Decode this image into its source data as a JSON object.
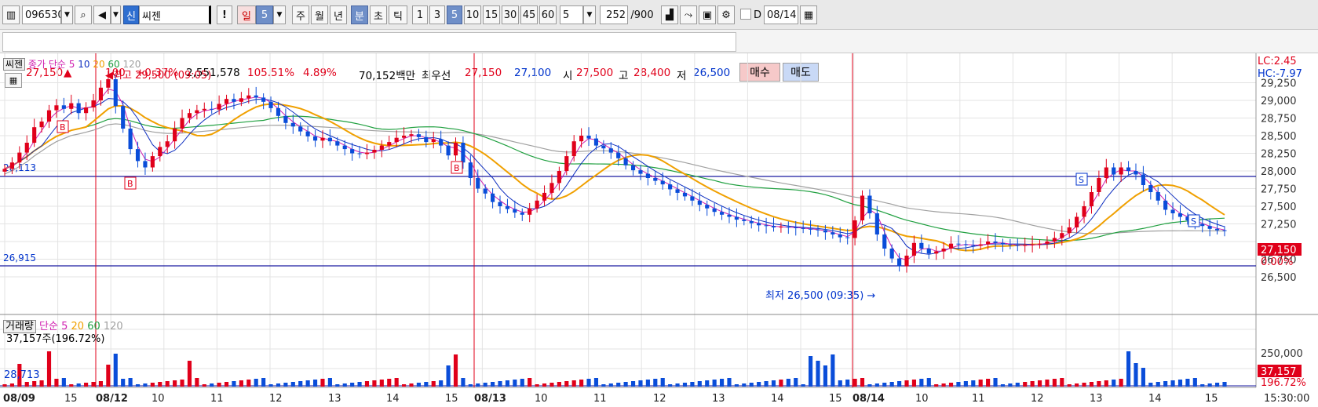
{
  "toolbar": {
    "code": "096530",
    "badge": "신",
    "stock_name": "씨젠",
    "alert": "!",
    "period_day": "일",
    "period_day_num": "5",
    "week": "주",
    "month": "월",
    "year": "년",
    "minute": "분",
    "second": "초",
    "tick": "틱",
    "intervals": [
      "1",
      "3",
      "5",
      "10",
      "15",
      "30",
      "45",
      "60"
    ],
    "interval_value": "5",
    "count": "252",
    "count_max": "/900",
    "date_label": "D",
    "date": "08/14"
  },
  "info": {
    "price": "27,150",
    "arrow": "▲",
    "change": "100",
    "change_pct": "+0.37%",
    "volume": "2,551,578",
    "vol_ratio": "105.51%",
    "turnover": "4.89%",
    "amount": "70,152백만",
    "best_label": "최우선",
    "best_ask": "27,150",
    "best_bid": "27,100",
    "open_label": "시",
    "open": "27,500",
    "high_label": "고",
    "high": "28,400",
    "low_label": "저",
    "low": "26,500",
    "buy": "매수",
    "sell": "매도"
  },
  "price_panel": {
    "name": "씨젠",
    "legend_label": "종가 단순",
    "ma": [
      "5",
      "10",
      "20",
      "60",
      "120"
    ],
    "high_note": "최고 29,500 (09:05)",
    "low_note": "최저 26,500 (09:35)",
    "lc": "LC:2.45",
    "hc": "HC:-7.97",
    "line1_label": "28,113",
    "line2_label": "26,915",
    "ticks": [
      "29,250",
      "29,000",
      "28,750",
      "28,500",
      "28,250",
      "28,000",
      "27,750",
      "27,500",
      "27,250",
      "26,750",
      "26,500"
    ],
    "cur_price": "27,150",
    "cur_pct": "0.00%",
    "markers": [
      "B",
      "B",
      "B",
      "S",
      "S"
    ]
  },
  "volume_panel": {
    "title": "거래량",
    "legend_label": "단순",
    "ma": [
      "5",
      "20",
      "60",
      "120"
    ],
    "info": "37,157주(196.72%)",
    "left_val": "28,713",
    "tick": "250,000",
    "cur_vol": "37,157",
    "cur_pct": "196.72%"
  },
  "xaxis": {
    "labels": [
      "08/09",
      "15",
      "08/12",
      "10",
      "11",
      "12",
      "13",
      "14",
      "15",
      "08/13",
      "10",
      "11",
      "12",
      "13",
      "14",
      "15",
      "08/14",
      "10",
      "11",
      "12",
      "13",
      "14",
      "15"
    ],
    "time": "15:30:00"
  },
  "colors": {
    "up": "#e0001a",
    "down": "#0a4dd9",
    "ma5": "#d020b0",
    "ma10": "#1030c0",
    "ma20": "#f0a000",
    "ma60": "#20a040",
    "ma120": "#a0a0a0"
  },
  "chart_data": {
    "type": "candlestick",
    "series_close": [
      28030,
      28120,
      28260,
      28400,
      28620,
      28700,
      28860,
      28930,
      28880,
      28960,
      28820,
      28900,
      29000,
      29180,
      29300,
      28920,
      28600,
      28310,
      28140,
      28050,
      28210,
      28340,
      28420,
      28600,
      28750,
      28820,
      28860,
      28880,
      28870,
      28950,
      29020,
      28980,
      29030,
      29070,
      29040,
      28980,
      28890,
      28780,
      28680,
      28630,
      28560,
      28490,
      28430,
      28470,
      28420,
      28360,
      28310,
      28250,
      28240,
      28260,
      28300,
      28360,
      28410,
      28470,
      28500,
      28520,
      28480,
      28410,
      28450,
      28360,
      28220,
      28400,
      28120,
      27900,
      27750,
      27680,
      27560,
      27500,
      27460,
      27410,
      27380,
      27470,
      27580,
      27690,
      27830,
      28000,
      28210,
      28420,
      28500,
      28460,
      28360,
      28320,
      28260,
      28180,
      28080,
      28010,
      27960,
      27900,
      27860,
      27810,
      27740,
      27690,
      27640,
      27580,
      27520,
      27470,
      27420,
      27380,
      27350,
      27310,
      27290,
      27260,
      27230,
      27220,
      27200,
      27210,
      27200,
      27190,
      27180,
      27170,
      27160,
      27130,
      27100,
      27060,
      27050,
      27300,
      27650,
      27400,
      27100,
      26900,
      26760,
      26650,
      26800,
      26980,
      26900,
      26830,
      26860,
      26900,
      26970,
      26960,
      26950,
      26940,
      26960,
      27000,
      26980,
      26960,
      26950,
      26940,
      26950,
      26960,
      26970,
      27000,
      27050,
      27120,
      27200,
      27350,
      27500,
      27700,
      27900,
      28050,
      27950,
      28050,
      28000,
      27950,
      27800,
      27700,
      27580,
      27450,
      27400,
      27350,
      27300,
      27250,
      27220,
      27180,
      27160,
      27150
    ]
  }
}
